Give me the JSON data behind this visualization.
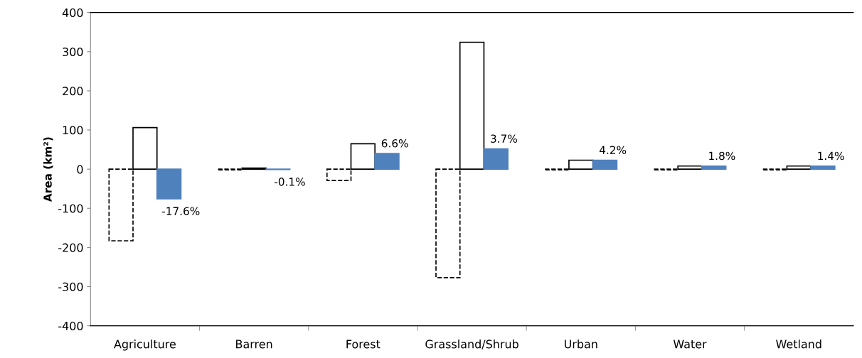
{
  "chart_data": {
    "type": "bar",
    "ylabel": "Area (km²)",
    "categories": [
      "Agriculture",
      "Barren",
      "Forest",
      "Grassland/Shrub",
      "Urban",
      "Water",
      "Wetland"
    ],
    "series": [
      {
        "color": "#ffffff",
        "line_style": "dashed",
        "values": [
          -183,
          -2,
          -29,
          -277,
          -2,
          -2,
          -2
        ]
      },
      {
        "color": "#ffffff",
        "line_style": "solid",
        "values": [
          106,
          3,
          65,
          324,
          23,
          8,
          8
        ]
      },
      {
        "color": "#4f81bd",
        "values": [
          -76,
          -1,
          40,
          52,
          23,
          8,
          8
        ]
      }
    ],
    "annotations": [
      "-17.6%",
      "-0.1%",
      "6.6%",
      "3.7%",
      "4.2%",
      "1.8%",
      "1.4%"
    ],
    "ylim": [
      -400,
      400
    ],
    "yticks": [
      -400,
      -300,
      -200,
      -100,
      0,
      100,
      200,
      300,
      400
    ],
    "grid": false,
    "legend": false
  }
}
